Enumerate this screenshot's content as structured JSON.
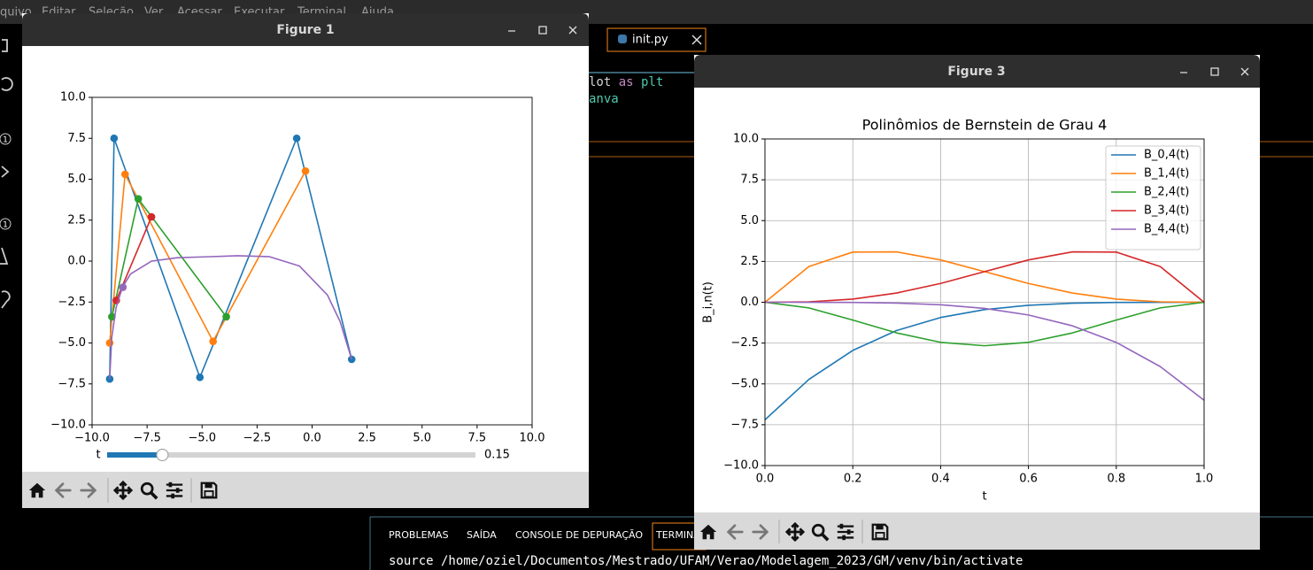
{
  "menu": [
    "quivo",
    "Editar",
    "Seleção",
    "Ver",
    "Acessar",
    "Executar",
    "Terminal",
    "Ajuda"
  ],
  "activity": {
    "badges": [
      1,
      1
    ]
  },
  "editor": {
    "tab": "init.py",
    "code": [
      [
        {
          "text": "lot",
          "color": "#d4d4d4"
        },
        {
          "text": "as",
          "color": "#c586c0"
        },
        {
          "text": "plt",
          "color": "#4ec9b0"
        }
      ],
      [
        {
          "text": "anva",
          "color": "#4ec9b0"
        }
      ]
    ]
  },
  "panel": {
    "tabs": [
      "PROBLEMAS",
      "SAÍDA",
      "CONSOLE DE DEPURAÇÃO",
      "TERMINAL"
    ],
    "terminal": "source /home/oziel/Documentos/Mestrado/UFAM/Verao/Modelagem_2023/GM/venv/bin/activate"
  },
  "windows": [
    {
      "title": "Figure 1",
      "slider": {
        "label": "t",
        "value": 0.15
      }
    },
    {
      "title": "Figure 3"
    }
  ],
  "chart_data": [
    {
      "type": "line",
      "xlim": [
        -10,
        10
      ],
      "ylim": [
        -10,
        10
      ],
      "xticks": [
        {
          "value": -10,
          "label": "−10.0"
        },
        {
          "value": -7.5,
          "label": "−7.5"
        },
        {
          "value": -5,
          "label": "−5.0"
        },
        {
          "value": -2.5,
          "label": "−2.5"
        },
        {
          "value": 0,
          "label": "0.0"
        },
        2.5,
        {
          "value": 5,
          "label": "5.0"
        },
        7.5,
        {
          "value": 10,
          "label": "10.0"
        }
      ],
      "yticks": [
        {
          "value": -10,
          "label": "−10.0"
        },
        {
          "value": -7.5,
          "label": "−7.5"
        },
        {
          "value": -5,
          "label": "−5.0"
        },
        {
          "value": -2.5,
          "label": "−2.5"
        },
        {
          "value": 0,
          "label": "0.0"
        },
        2.5,
        {
          "value": 5,
          "label": "5.0"
        },
        7.5,
        {
          "value": 10,
          "label": "10.0"
        }
      ],
      "grid": false,
      "series": [
        {
          "color": "#1f77b4",
          "marker": true,
          "x": [
            -9.2,
            -9.0,
            -5.1,
            -0.7,
            1.8
          ],
          "values": [
            -7.2,
            7.5,
            -7.1,
            7.5,
            -6.0
          ]
        },
        {
          "color": "#ff7f0e",
          "marker": true,
          "x": [
            -9.2,
            -8.5,
            -4.5,
            -0.3
          ],
          "values": [
            -5.0,
            5.3,
            -4.9,
            5.5
          ]
        },
        {
          "color": "#2ca02c",
          "marker": true,
          "x": [
            -9.1,
            -7.9,
            -3.9
          ],
          "values": [
            -3.4,
            3.8,
            -3.4
          ]
        },
        {
          "color": "#d62728",
          "marker": true,
          "x": [
            -8.9,
            -7.3
          ],
          "values": [
            -2.4,
            2.7
          ]
        },
        {
          "color": "#9467bd",
          "marker": true,
          "x": [
            -8.6
          ],
          "values": [
            -1.6
          ]
        },
        {
          "color": "#9467bd",
          "marker": false,
          "x": [
            -9.2,
            -9.106,
            -8.911,
            -8.623,
            -8.253,
            -7.301,
            -6.127,
            -4.8,
            -3.389,
            -1.96,
            -0.578,
            0.696,
            1.273,
            1.8
          ],
          "values": [
            -7.2,
            -4.671,
            -2.856,
            -1.604,
            -0.785,
            -0.002,
            0.204,
            0.263,
            0.328,
            0.276,
            -0.296,
            -2.068,
            -3.693,
            -6.0
          ]
        }
      ]
    },
    {
      "type": "line",
      "title": "Polinômios de Bernstein de Grau 4",
      "xlabel": "t",
      "ylabel": "B_i,n(t)",
      "xlim": [
        0,
        1
      ],
      "ylim": [
        -10,
        10
      ],
      "xticks": [
        {
          "value": 0,
          "label": "0.0"
        },
        0.2,
        0.4,
        0.6,
        0.8,
        {
          "value": 1,
          "label": "1.0"
        }
      ],
      "yticks": [
        {
          "value": -10,
          "label": "−10.0"
        },
        {
          "value": -7.5,
          "label": "−7.5"
        },
        {
          "value": -5,
          "label": "−5.0"
        },
        {
          "value": -2.5,
          "label": "−2.5"
        },
        {
          "value": 0,
          "label": "0.0"
        },
        2.5,
        {
          "value": 5,
          "label": "5.0"
        },
        7.5,
        {
          "value": 10,
          "label": "10.0"
        }
      ],
      "grid": true,
      "legend": "upper right",
      "x": [
        0,
        0.1,
        0.2,
        0.3,
        0.4,
        0.5,
        0.6,
        0.7,
        0.8,
        0.9,
        1
      ],
      "series": [
        {
          "name": "B_0,4(t)",
          "color": "#1f77b4",
          "values": [
            -7.2,
            -4.724,
            -2.949,
            -1.729,
            -0.933,
            -0.45,
            -0.184,
            -0.058,
            -0.012,
            -0.001,
            0
          ]
        },
        {
          "name": "B_1,4(t)",
          "color": "#ff7f0e",
          "values": [
            0,
            2.187,
            3.072,
            3.087,
            2.592,
            1.875,
            1.152,
            0.567,
            0.192,
            0.027,
            0
          ]
        },
        {
          "name": "B_2,4(t)",
          "color": "#2ca02c",
          "values": [
            0,
            -0.345,
            -1.091,
            -1.879,
            -2.454,
            -2.663,
            -2.454,
            -1.879,
            -1.091,
            -0.345,
            0
          ]
        },
        {
          "name": "B_3,4(t)",
          "color": "#d62728",
          "values": [
            0,
            0.027,
            0.192,
            0.567,
            1.152,
            1.875,
            2.592,
            3.087,
            3.072,
            2.187,
            0
          ]
        },
        {
          "name": "B_4,4(t)",
          "color": "#9467bd",
          "values": [
            0,
            -0.001,
            -0.01,
            -0.049,
            -0.154,
            -0.375,
            -0.778,
            -1.441,
            -2.458,
            -3.937,
            -6
          ]
        }
      ]
    }
  ]
}
